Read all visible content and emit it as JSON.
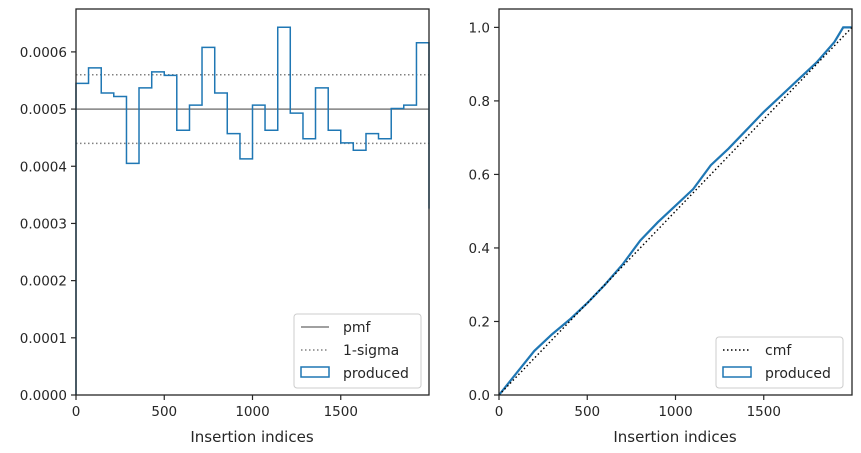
{
  "chart_data": [
    {
      "type": "step",
      "xlabel": "Insertion indices",
      "ylabel": "",
      "xlim": [
        0,
        2000
      ],
      "ylim": [
        0,
        0.000675
      ],
      "x_ticks": [
        0,
        500,
        1000,
        1500
      ],
      "x_tick_labels": [
        "0",
        "500",
        "1000",
        "1500"
      ],
      "y_ticks": [
        0,
        0.0001,
        0.0002,
        0.0003,
        0.0004,
        0.0005,
        0.0006
      ],
      "y_tick_labels": [
        "0.0000",
        "0.0001",
        "0.0002",
        "0.0003",
        "0.0004",
        "0.0005",
        "0.0006"
      ],
      "legend_position": "lower-right",
      "legend": [
        {
          "label": "pmf",
          "style": "solid-line",
          "color": "#808080"
        },
        {
          "label": "1-sigma",
          "style": "dotted-line",
          "color": "#808080"
        },
        {
          "label": "produced",
          "style": "patch",
          "color": "#1f77b4"
        }
      ],
      "pmf": 0.0005,
      "sigma_band": [
        0.00044,
        0.00056
      ],
      "produced": {
        "bin_edges": [
          0,
          71,
          143,
          214,
          286,
          357,
          429,
          500,
          571,
          643,
          714,
          786,
          857,
          929,
          1000,
          1071,
          1143,
          1214,
          1286,
          1357,
          1429,
          1500,
          1571,
          1643,
          1714,
          1786,
          1857,
          1929,
          2000
        ],
        "values": [
          0.000545,
          0.000572,
          0.000528,
          0.000522,
          0.000405,
          0.000537,
          0.000565,
          0.000559,
          0.000463,
          0.000507,
          0.000608,
          0.000528,
          0.000457,
          0.000413,
          0.000507,
          0.000463,
          0.000643,
          0.000493,
          0.000448,
          0.000537,
          0.000463,
          0.000441,
          0.000428,
          0.000457,
          0.000448,
          0.000501,
          0.000507,
          0.000616,
          0.000326
        ]
      }
    },
    {
      "type": "line",
      "xlabel": "Insertion indices",
      "ylabel": "",
      "xlim": [
        0,
        2000
      ],
      "ylim": [
        0,
        1.05
      ],
      "x_ticks": [
        0,
        500,
        1000,
        1500
      ],
      "x_tick_labels": [
        "0",
        "500",
        "1000",
        "1500"
      ],
      "y_ticks": [
        0,
        0.2,
        0.4,
        0.6,
        0.8,
        1.0
      ],
      "y_tick_labels": [
        "0.0",
        "0.2",
        "0.4",
        "0.6",
        "0.8",
        "1.0"
      ],
      "legend_position": "lower-right",
      "legend": [
        {
          "label": "cmf",
          "style": "dotted-line",
          "color": "#000000"
        },
        {
          "label": "produced",
          "style": "patch",
          "color": "#1f77b4"
        }
      ],
      "cmf": {
        "x": [
          0,
          2000
        ],
        "y": [
          0,
          1.0
        ]
      },
      "produced": {
        "x": [
          0,
          100,
          200,
          300,
          400,
          500,
          600,
          700,
          800,
          900,
          1000,
          1100,
          1200,
          1300,
          1400,
          1500,
          1600,
          1700,
          1800,
          1900,
          1950,
          2000
        ],
        "y": [
          0,
          0.06,
          0.12,
          0.165,
          0.205,
          0.25,
          0.3,
          0.355,
          0.42,
          0.47,
          0.515,
          0.56,
          0.625,
          0.67,
          0.72,
          0.77,
          0.815,
          0.86,
          0.905,
          0.96,
          1.0,
          1.0
        ]
      }
    }
  ]
}
